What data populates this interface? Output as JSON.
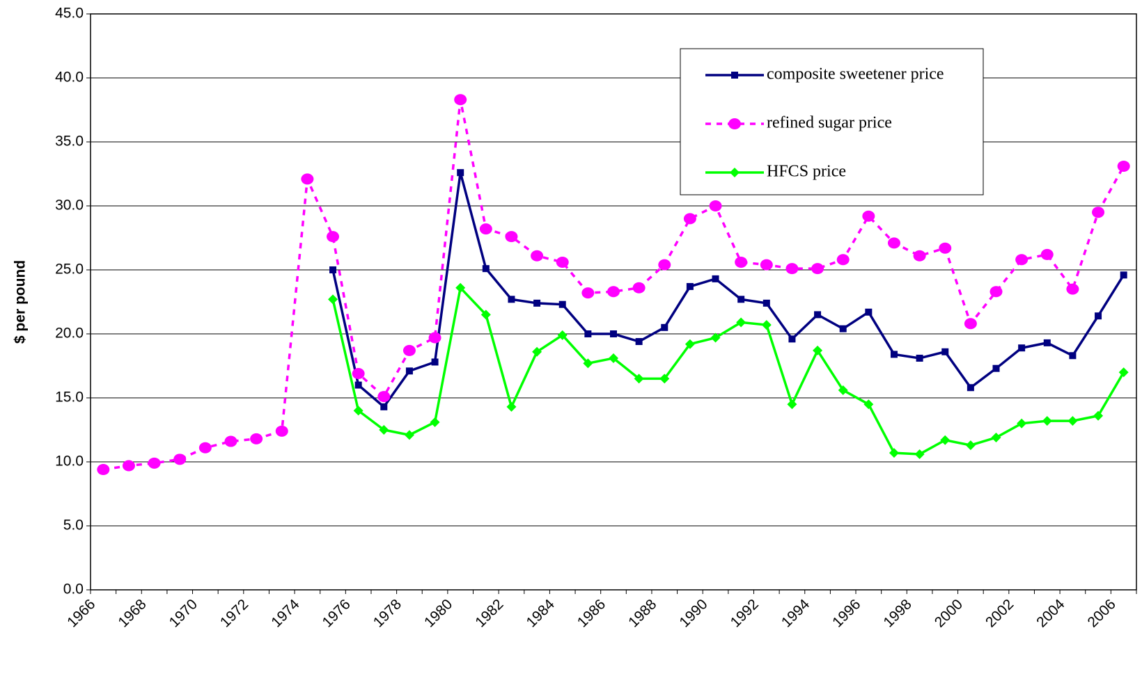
{
  "chart_data": {
    "type": "line",
    "y_label": "$ per pound",
    "categories": [
      "1966",
      null,
      "1968",
      null,
      "1970",
      null,
      "1972",
      null,
      "1974",
      null,
      "1976",
      null,
      "1978",
      null,
      "1980",
      null,
      "1982",
      null,
      "1984",
      null,
      "1986",
      null,
      "1988",
      null,
      "1990",
      null,
      "1992",
      null,
      "1994",
      null,
      "1996",
      null,
      "1998",
      null,
      "2000",
      null,
      "2002",
      null,
      "2004",
      null,
      "2006"
    ],
    "ylim": [
      0,
      45
    ],
    "yticks": [
      {
        "value": 0,
        "label": "0.0"
      },
      {
        "value": 5,
        "label": "5.0"
      },
      {
        "value": 10,
        "label": "10.0"
      },
      {
        "value": 15,
        "label": "15.0"
      },
      {
        "value": 20,
        "label": "20.0"
      },
      {
        "value": 25,
        "label": "25.0"
      },
      {
        "value": 30,
        "label": "30.0"
      },
      {
        "value": 35,
        "label": "35.0"
      },
      {
        "value": 40,
        "label": "40.0"
      },
      {
        "value": 45,
        "label": "45.0"
      }
    ],
    "grid": true,
    "legend": "upper right",
    "series": [
      {
        "name": "composite sweetener price",
        "color": "#000080",
        "marker": "square",
        "dashed": false,
        "values": [
          null,
          null,
          null,
          null,
          null,
          null,
          null,
          null,
          null,
          25.0,
          16.0,
          14.3,
          17.1,
          17.8,
          32.6,
          25.1,
          22.7,
          22.4,
          22.3,
          20.0,
          20.0,
          19.4,
          20.5,
          23.7,
          24.3,
          22.7,
          22.4,
          19.6,
          21.5,
          20.4,
          21.7,
          18.4,
          18.1,
          18.6,
          15.8,
          17.3,
          18.9,
          19.3,
          18.3,
          21.4,
          24.6
        ]
      },
      {
        "name": "refined sugar price",
        "color": "#ff00ff",
        "marker": "circle",
        "dashed": true,
        "values": [
          9.4,
          9.7,
          9.9,
          10.2,
          11.1,
          11.6,
          11.8,
          12.4,
          32.1,
          27.6,
          16.9,
          15.1,
          18.7,
          19.7,
          38.3,
          28.2,
          27.6,
          26.1,
          25.6,
          23.2,
          23.3,
          23.6,
          25.4,
          29.0,
          30.0,
          25.6,
          25.4,
          25.1,
          25.1,
          25.8,
          29.2,
          27.1,
          26.1,
          26.7,
          20.8,
          23.3,
          25.8,
          26.2,
          23.5,
          29.5,
          33.1
        ]
      },
      {
        "name": "HFCS price",
        "color": "#00ff00",
        "marker": "diamond",
        "dashed": false,
        "values": [
          null,
          null,
          null,
          null,
          null,
          null,
          null,
          null,
          null,
          22.7,
          14.0,
          12.5,
          12.1,
          13.1,
          23.6,
          21.5,
          14.3,
          18.6,
          19.9,
          17.7,
          18.1,
          16.5,
          16.5,
          19.2,
          19.7,
          20.9,
          20.7,
          14.5,
          18.7,
          15.6,
          14.5,
          10.7,
          10.6,
          11.7,
          11.3,
          11.9,
          13.0,
          13.2,
          13.2,
          13.6,
          17.0
        ]
      }
    ]
  }
}
